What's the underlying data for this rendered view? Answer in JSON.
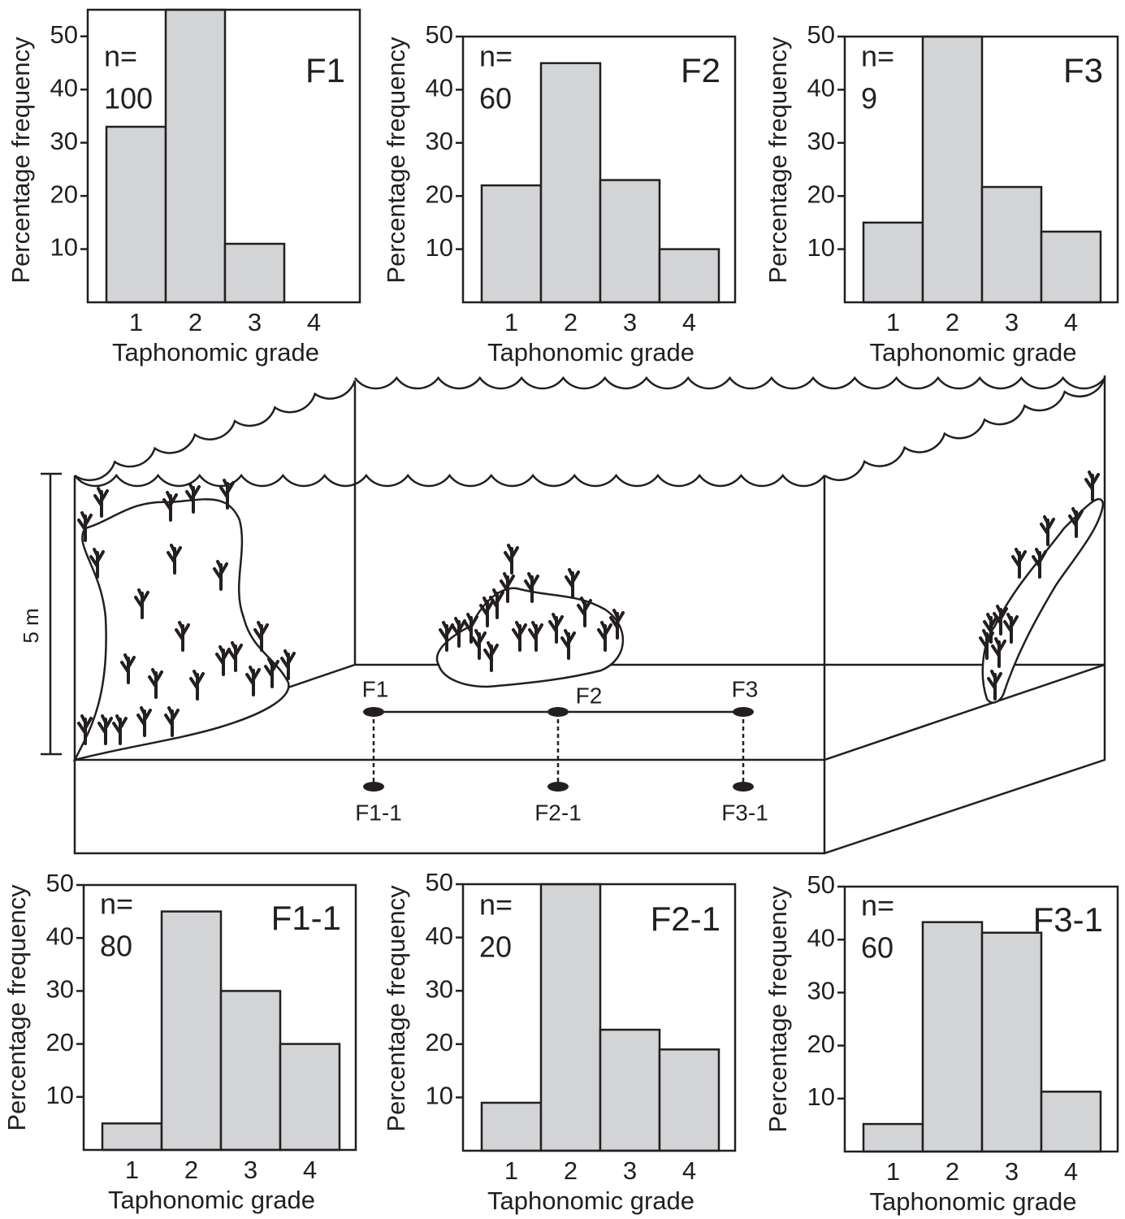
{
  "chart_data": [
    {
      "type": "bar",
      "title": "F1",
      "annotations": [
        "n=",
        "100"
      ],
      "categories": [
        "1",
        "2",
        "3",
        "4"
      ],
      "values": [
        33,
        55,
        11,
        0
      ],
      "color": "#d3d4d6",
      "xlabel": "Taphonomic grade",
      "ylabel": "Percentage frequency",
      "ylim": [
        0,
        55
      ],
      "yticks": [
        10,
        20,
        30,
        40,
        50
      ]
    },
    {
      "type": "bar",
      "title": "F2",
      "annotations": [
        "n=",
        "60"
      ],
      "categories": [
        "1",
        "2",
        "3",
        "4"
      ],
      "values": [
        22,
        45,
        23,
        10
      ],
      "color": "#d3d4d6",
      "xlabel": "Taphonomic grade",
      "ylabel": "Percentage frequency",
      "ylim": [
        0,
        50
      ],
      "yticks": [
        10,
        20,
        30,
        40,
        50
      ]
    },
    {
      "type": "bar",
      "title": "F3",
      "annotations": [
        "n=",
        "9"
      ],
      "categories": [
        "1",
        "2",
        "3",
        "4"
      ],
      "values": [
        15,
        50,
        21.7,
        13.3
      ],
      "color": "#d3d4d6",
      "xlabel": "Taphonomic grade",
      "ylabel": "Percentage frequency",
      "ylim": [
        0,
        50
      ],
      "yticks": [
        10,
        20,
        30,
        40,
        50
      ]
    },
    {
      "type": "bar",
      "title": "F1-1",
      "annotations": [
        "n=",
        "80"
      ],
      "categories": [
        "1",
        "2",
        "3",
        "4"
      ],
      "values": [
        5,
        45,
        30,
        20
      ],
      "color": "#d3d4d6",
      "xlabel": "Taphonomic grade",
      "ylabel": "Percentage frequency",
      "ylim": [
        0,
        50
      ],
      "yticks": [
        10,
        20,
        30,
        40,
        50
      ]
    },
    {
      "type": "bar",
      "title": "F2-1",
      "annotations": [
        "n=",
        "20"
      ],
      "categories": [
        "1",
        "2",
        "3",
        "4"
      ],
      "values": [
        9,
        50,
        22.7,
        19
      ],
      "color": "#d3d4d6",
      "xlabel": "Taphonomic grade",
      "ylabel": "Percentage frequency",
      "ylim": [
        0,
        50
      ],
      "yticks": [
        10,
        20,
        30,
        40,
        50
      ]
    },
    {
      "type": "bar",
      "title": "F3-1",
      "annotations": [
        "n=",
        "60"
      ],
      "categories": [
        "1",
        "2",
        "3",
        "4"
      ],
      "values": [
        5.2,
        43.3,
        41.3,
        11.3
      ],
      "color": "#d3d4d6",
      "xlabel": "Taphonomic grade",
      "ylabel": "Percentage frequency",
      "ylim": [
        0,
        50
      ],
      "yticks": [
        10,
        20,
        30,
        40,
        50
      ]
    }
  ],
  "diagram": {
    "scale_label": "5 m",
    "sites": [
      "F1",
      "F2",
      "F3",
      "F1-1",
      "F2-1",
      "F3-1"
    ]
  }
}
